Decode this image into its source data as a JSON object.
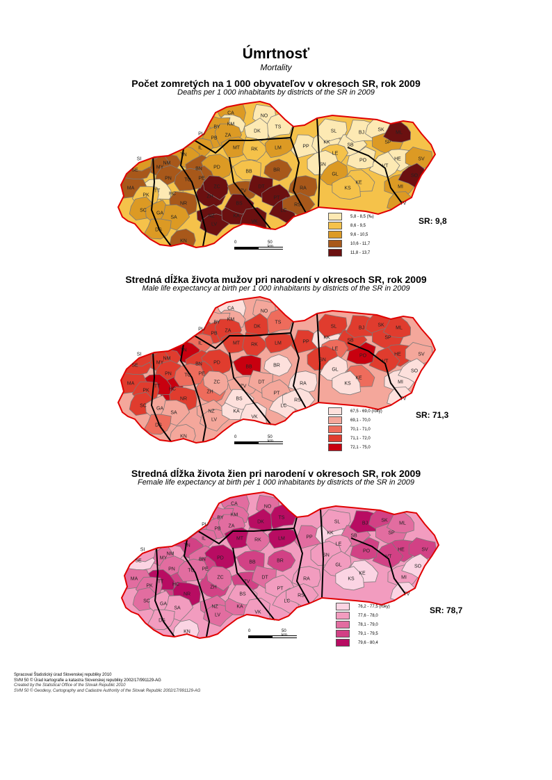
{
  "title": "Úmrtnosť",
  "subtitle": "Mortality",
  "district_codes": [
    "CA",
    "NO",
    "KM",
    "BY",
    "TS",
    "DK",
    "PU",
    "PB",
    "ZA",
    "MT",
    "RK",
    "LM",
    "IL",
    "TN",
    "BN",
    "PD",
    "PE",
    "ZH",
    "BB",
    "BR",
    "ZC",
    "ZV",
    "DT",
    "NM",
    "MY",
    "PN",
    "HC",
    "TT",
    "TO",
    "NR",
    "SE",
    "SI",
    "MA",
    "PK",
    "SC",
    "GA",
    "SA",
    "KN",
    "NZ",
    "DS",
    "LV",
    "KA",
    "BS",
    "VK",
    "PT",
    "LC",
    "RA",
    "RS",
    "PP",
    "KK",
    "SL",
    "SB",
    "LE",
    "SN",
    "GL",
    "KE",
    "KS",
    "BJ",
    "SK",
    "SP",
    "ML",
    "HE",
    "SV",
    "VT",
    "PO",
    "MI",
    "SO",
    "TV"
  ],
  "maps": [
    {
      "title": "Počet zomretých na 1 000 obyvateľov v okresoch SR, rok 2009",
      "subtitle": "Deaths per 1 000 inhabitants by districts of the SR in 2009",
      "sr_value": "SR: 9,8",
      "legend": [
        {
          "label": "5,8 - 8,5 (‰)",
          "color": "#fde9b3"
        },
        {
          "label": "8,6 - 9,5",
          "color": "#f5c24a"
        },
        {
          "label": "9,6 - 10,5",
          "color": "#dc9a24"
        },
        {
          "label": "10,6 - 11,7",
          "color": "#a8581a"
        },
        {
          "label": "11,8 - 13,7",
          "color": "#6b1010"
        }
      ],
      "scale": {
        "zero": "0",
        "label": "50 km"
      }
    },
    {
      "title": "Stredná dĺžka života mužov pri narodení v okresoch SR, rok 2009",
      "subtitle": "Male life expectancy at birth per 1 000 inhabitants by districts of the SR in 2009",
      "sr_value": "SR: 71,3",
      "legend": [
        {
          "label": "67,5 - 69,0 (roky)",
          "color": "#fde0dc"
        },
        {
          "label": "69,1 - 70,0",
          "color": "#f4a79b"
        },
        {
          "label": "70,1 - 71,0",
          "color": "#ee6c5c"
        },
        {
          "label": "71,1 - 72,0",
          "color": "#e03c2e"
        },
        {
          "label": "72,1 - 75,0",
          "color": "#c8000f"
        }
      ],
      "scale": {
        "zero": "0",
        "label": "50 km"
      }
    },
    {
      "title": "Stredná dĺžka života žien pri narodení v okresoch SR, rok 2009",
      "subtitle": "Female life expectancy at birth per 1 000 inhabitants by districts of the SR in 2009",
      "sr_value": "SR: 78,7",
      "legend": [
        {
          "label": "76,2 - 77,5 (roky)",
          "color": "#fbd4e3"
        },
        {
          "label": "77,6 - 78,0",
          "color": "#f29cbf"
        },
        {
          "label": "78,1 - 79,0",
          "color": "#e26da0"
        },
        {
          "label": "79,1 - 79,5",
          "color": "#d24185"
        },
        {
          "label": "79,6 - 80,4",
          "color": "#b80c62"
        }
      ],
      "scale": {
        "zero": "0",
        "label": "50 km"
      }
    }
  ],
  "footer": {
    "line1": "Spracoval Štatistický úrad Slovenskej republiky 2010",
    "line2": "SVM 50 © Úrad kartografie a katastra Slovenskej republiky 2002/17/991129-AG",
    "line3": "Created by the Statistical Office of the Slovak Republic 2010",
    "line4": "SVM 50 © Geodesy, Cartography and Cadastre Authority of the Slovak Republic 2002/17/991129-AG"
  }
}
